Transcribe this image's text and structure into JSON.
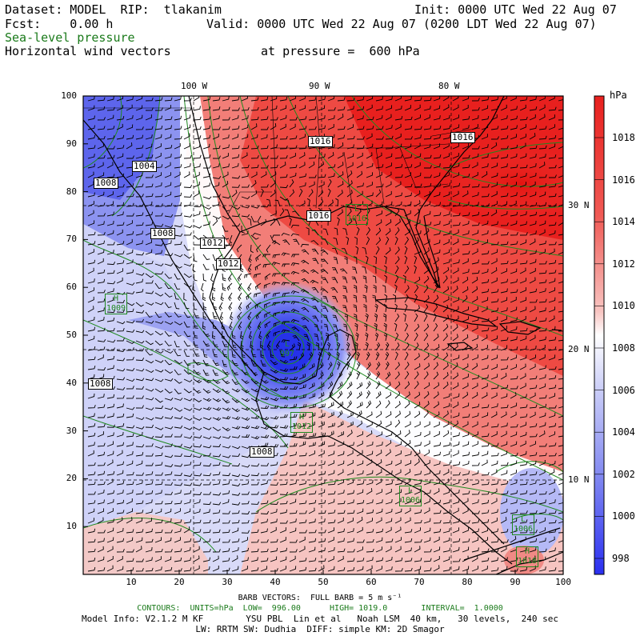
{
  "header": {
    "dataset_line": "Dataset: MODEL  RIP:  tlakanim",
    "init_line": "Init: 0000 UTC Wed 22 Aug 07",
    "fcst_line": "Fcst:    0.00 h",
    "valid_line": "Valid: 0000 UTC Wed 22 Aug 07 (0200 LDT Wed 22 Aug 07)",
    "field1": "Sea-level pressure",
    "field2": "Horizontal wind vectors",
    "pressure_level": "at pressure =  600 hPa"
  },
  "map": {
    "x_tick_labels": [
      "10",
      "20",
      "30",
      "40",
      "50",
      "60",
      "70",
      "80",
      "90",
      "100"
    ],
    "y_tick_labels": [
      "10",
      "20",
      "30",
      "40",
      "50",
      "60",
      "70",
      "80",
      "90",
      "100"
    ],
    "lon_labels": [
      "100 W",
      "90 W",
      "80 W"
    ],
    "lat_labels": [
      "30 N",
      "20 N",
      "10 N"
    ],
    "contour_labels": [
      "1004",
      "1008",
      "1012",
      "1012",
      "1016",
      "1016",
      "1016",
      "1008",
      "1008",
      "1008"
    ],
    "centers": [
      {
        "letter": "L",
        "value": "997"
      },
      {
        "letter": "H",
        "value": "1009"
      },
      {
        "letter": "H",
        "value": "1012"
      },
      {
        "letter": "L",
        "value": "1006"
      },
      {
        "letter": "L",
        "value": "1006"
      },
      {
        "letter": "H",
        "value": "1018"
      },
      {
        "letter": "L",
        "value": "1016"
      }
    ]
  },
  "colorbar": {
    "unit": "hPa",
    "labels": [
      "1018",
      "1016",
      "1014",
      "1012",
      "1010",
      "1008",
      "1006",
      "1004",
      "1002",
      "1000",
      "998"
    ]
  },
  "footer": {
    "barb_line": "BARB VECTORS:  FULL BARB = 5 m s⁻¹",
    "contour_line": "CONTOURS:  UNITS=hPa  LOW=  996.00      HIGH= 1019.0       INTERVAL=  1.0000",
    "model_info_line": "Model Info: V2.1.2 M KF        YSU PBL  Lin et al   Noah LSM  40 km,   30 levels,  240 sec",
    "physics_line": "LW: RRTM SW: Dudhia  DIFF: simple KM: 2D Smagor"
  },
  "colors": {
    "high": "#e8201e",
    "mid": "#ffffff",
    "low": "#2a2ff0",
    "contour": "#1f8a1f",
    "barb": "#000000"
  }
}
